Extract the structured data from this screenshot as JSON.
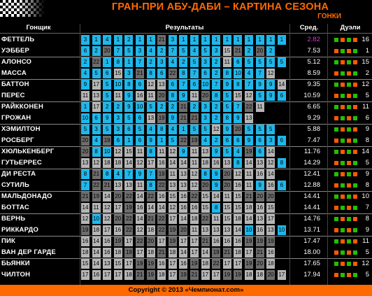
{
  "title": "ГРАН-ПРИ АБУ-ДАБИ – КАРТИНА СЕЗОНА",
  "subtitle": "ГОНКИ",
  "headers": {
    "driver": "Гонщик",
    "results": "Результаты",
    "avg": "Сред.",
    "duels": "Дуэли"
  },
  "footer": "Copyright © 2013 «Чемпионат.com»",
  "colors": {
    "cyan": "#1fb7ea",
    "light_grey": "#b5b5b5",
    "dark_grey": "#6d6d6d",
    "accent": "#ff6a00",
    "win": "#22c000",
    "loss": "#ff5a00",
    "avg_highlight": "#d13fd1"
  },
  "drivers": [
    {
      "name": "ФЕТТЕЛЬ",
      "avg": "2.82",
      "duel": "16",
      "results": [
        "3",
        "1",
        "4",
        "1",
        "2",
        "1",
        "1",
        "21",
        "3",
        "1",
        "1",
        "1",
        "1",
        "1",
        "1",
        "1",
        "1",
        "1",
        "1"
      ]
    },
    {
      "name": "УЭББЕР",
      "avg": "7.53",
      "duel": "1",
      "results": [
        "6",
        "2",
        "20",
        "7",
        "5",
        "3",
        "4",
        "2",
        "7",
        "5",
        "4",
        "5",
        "3",
        "15",
        "21",
        "2",
        "20",
        "2",
        ""
      ]
    },
    {
      "name": "АЛОНСО",
      "avg": "5.12",
      "duel": "15",
      "results": [
        "2",
        "22",
        "1",
        "8",
        "1",
        "7",
        "2",
        "3",
        "4",
        "2",
        "5",
        "3",
        "2",
        "11",
        "6",
        "5",
        "5",
        "5",
        "5"
      ]
    },
    {
      "name": "МАССА",
      "avg": "8.59",
      "duel": "2",
      "results": [
        "4",
        "5",
        "6",
        "15",
        "3",
        "21",
        "8",
        "6",
        "22",
        "8",
        "7",
        "6",
        "2",
        "8",
        "10",
        "4",
        "7",
        "12",
        ""
      ]
    },
    {
      "name": "БАТТОН",
      "avg": "9.35",
      "duel": "12",
      "results": [
        "9",
        "17",
        "5",
        "10",
        "8",
        "6",
        "12",
        "13",
        "6",
        "7",
        "6",
        "10",
        "7",
        "9",
        "8",
        "7",
        "9",
        "9",
        "14"
      ]
    },
    {
      "name": "ПЕРЕС",
      "avg": "10.59",
      "duel": "5",
      "results": [
        "11",
        "13",
        "5",
        "11",
        "9",
        "16",
        "11",
        "20",
        "8",
        "9",
        "11",
        "20",
        "8",
        "5",
        "15",
        "12",
        "5",
        "9",
        "6"
      ]
    },
    {
      "name": "РАЙККОНЕН",
      "avg": "6.65",
      "duel": "11",
      "results": [
        "1",
        "17",
        "2",
        "2",
        "9",
        "10",
        "5",
        "2",
        "2",
        "21",
        "2",
        "3",
        "2",
        "5",
        "7",
        "22",
        "11",
        "",
        ""
      ]
    },
    {
      "name": "ГРОЖАН",
      "avg": "9.29",
      "duel": "6",
      "results": [
        "10",
        "6",
        "9",
        "3",
        "5",
        "6",
        "13",
        "19",
        "9",
        "21",
        "21",
        "3",
        "2",
        "8",
        "9",
        "13",
        "",
        ""
      ]
    },
    {
      "name": "ХЭМИЛТОН",
      "avg": "5.88",
      "duel": "9",
      "results": [
        "5",
        "3",
        "5",
        "3",
        "6",
        "5",
        "4",
        "8",
        "4",
        "1",
        "5",
        "5",
        "12",
        "9",
        "20",
        "5",
        "5",
        "5",
        "",
        ""
      ]
    },
    {
      "name": "РОСБЕРГ",
      "avg": "7.47",
      "duel": "8",
      "results": [
        "20",
        "4",
        "19",
        "6",
        "1",
        "6",
        "9",
        "1",
        "5",
        "22",
        "19",
        "4",
        "2",
        "6",
        "6",
        "9",
        "6",
        "3",
        "6"
      ]
    },
    {
      "name": "ХЮЛЬКЕНБЕРГ",
      "avg": "11.76",
      "duel": "14",
      "results": [
        "20",
        "8",
        "10",
        "12",
        "15",
        "11",
        "8",
        "11",
        "12",
        "9",
        "11",
        "13",
        "9",
        "5",
        "4",
        "19",
        "6",
        "14",
        ""
      ]
    },
    {
      "name": "ГУТЬЕРРЕС",
      "avg": "14.29",
      "duel": "5",
      "results": [
        "13",
        "12",
        "18",
        "18",
        "14",
        "12",
        "17",
        "16",
        "14",
        "14",
        "11",
        "18",
        "16",
        "13",
        "8",
        "14",
        "13",
        "12",
        "8"
      ]
    },
    {
      "name": "ДИ РЕСТА",
      "avg": "12.41",
      "duel": "9",
      "results": [
        "8",
        "21",
        "8",
        "4",
        "7",
        "9",
        "7",
        "19",
        "11",
        "13",
        "12",
        "8",
        "9",
        "20",
        "12",
        "11",
        "16",
        "14",
        ""
      ]
    },
    {
      "name": "СУТИЛЬ",
      "avg": "12.88",
      "duel": "8",
      "results": [
        "7",
        "22",
        "21",
        "13",
        "13",
        "11",
        "8",
        "22",
        "13",
        "13",
        "12",
        "20",
        "9",
        "20",
        "16",
        "11",
        "9",
        "16",
        "6"
      ]
    },
    {
      "name": "МАЛЬДОНАДО",
      "avg": "14.41",
      "duel": "10",
      "results": [
        "21",
        "19",
        "14",
        "20",
        "22",
        "14",
        "22",
        "16",
        "15",
        "16",
        "22",
        "15",
        "14",
        "11",
        "15",
        "21",
        "20",
        "20",
        ""
      ]
    },
    {
      "name": "БОТТАС",
      "avg": "14.41",
      "duel": "7",
      "results": [
        "14",
        "11",
        "12",
        "17",
        "19",
        "16",
        "14",
        "14",
        "12",
        "16",
        "16",
        "15",
        "8",
        "15",
        "15",
        "18",
        "16",
        "15",
        ""
      ]
    },
    {
      "name": "ВЕРНЬ",
      "avg": "14.76",
      "duel": "8",
      "results": [
        "12",
        "10",
        "12",
        "20",
        "22",
        "14",
        "21",
        "22",
        "17",
        "14",
        "18",
        "22",
        "11",
        "15",
        "18",
        "14",
        "13",
        "17",
        ""
      ]
    },
    {
      "name": "РИККАРДО",
      "avg": "13.71",
      "duel": "9",
      "results": [
        "19",
        "18",
        "17",
        "16",
        "22",
        "12",
        "18",
        "22",
        "19",
        "20",
        "11",
        "13",
        "13",
        "13",
        "14",
        "10",
        "16",
        "13",
        "10"
      ]
    },
    {
      "name": "ПИК",
      "avg": "17.47",
      "duel": "11",
      "results": [
        "16",
        "14",
        "16",
        "19",
        "17",
        "22",
        "20",
        "17",
        "19",
        "17",
        "17",
        "21",
        "16",
        "16",
        "16",
        "19",
        "19",
        "19",
        ""
      ]
    },
    {
      "name": "ВАН ДЕР ГАРДЕ",
      "avg": "18.00",
      "duel": "5",
      "results": [
        "18",
        "14",
        "16",
        "18",
        "19",
        "17",
        "18",
        "21",
        "18",
        "14",
        "17",
        "14",
        "19",
        "21",
        "18",
        "17",
        "21",
        "16",
        ""
      ]
    },
    {
      "name": "БЬЯНКИ",
      "avg": "17.65",
      "duel": "12",
      "results": [
        "15",
        "14",
        "13",
        "15",
        "17",
        "19",
        "19",
        "16",
        "17",
        "16",
        "19",
        "18",
        "22",
        "17",
        "17",
        "19",
        "20",
        "18",
        ""
      ]
    },
    {
      "name": "ЧИЛТОН",
      "avg": "17.94",
      "duel": "5",
      "results": [
        "17",
        "16",
        "17",
        "17",
        "18",
        "21",
        "19",
        "18",
        "17",
        "19",
        "21",
        "17",
        "17",
        "19",
        "19",
        "18",
        "18",
        "20",
        "17"
      ]
    }
  ]
}
